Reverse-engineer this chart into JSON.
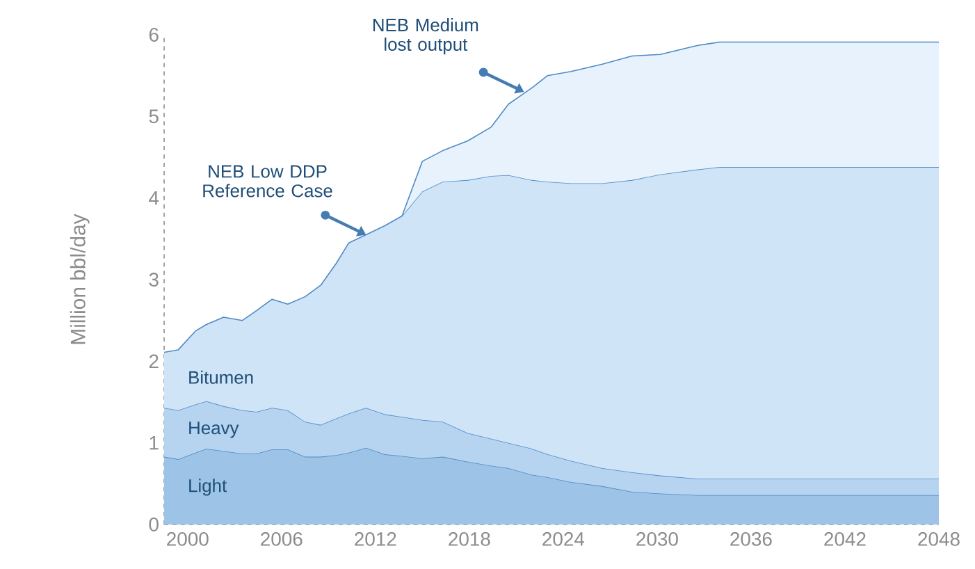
{
  "chart_data": {
    "type": "area",
    "stacked": true,
    "ylabel": "Million bbl/day",
    "x": [
      1998.5,
      1999.4,
      2000.5,
      2001.2,
      2002.3,
      2003.5,
      2004.4,
      2005.4,
      2006.4,
      2007.5,
      2008.5,
      2009.5,
      2010.3,
      2011.4,
      2012.6,
      2013.7,
      2015,
      2016.3,
      2017.9,
      2019.4,
      2020.5,
      2022,
      2023,
      2024.5,
      2026.5,
      2028.4,
      2030.2,
      2032.6,
      2034,
      2048
    ],
    "series": [
      {
        "name": "Light",
        "color": "#9dc3e6",
        "values": [
          0.83,
          0.8,
          0.88,
          0.93,
          0.9,
          0.87,
          0.87,
          0.92,
          0.92,
          0.83,
          0.83,
          0.85,
          0.88,
          0.94,
          0.86,
          0.84,
          0.81,
          0.83,
          0.77,
          0.72,
          0.69,
          0.61,
          0.58,
          0.52,
          0.47,
          0.4,
          0.38,
          0.36,
          0.36,
          0.36
        ]
      },
      {
        "name": "Heavy",
        "color": "#b6d4f0",
        "values": [
          0.6,
          0.6,
          0.59,
          0.58,
          0.55,
          0.53,
          0.51,
          0.51,
          0.48,
          0.43,
          0.39,
          0.45,
          0.48,
          0.49,
          0.49,
          0.48,
          0.47,
          0.43,
          0.35,
          0.33,
          0.31,
          0.32,
          0.28,
          0.26,
          0.22,
          0.24,
          0.22,
          0.2,
          0.2,
          0.2
        ]
      },
      {
        "name": "Bitumen",
        "color": "#d0e4f7",
        "values": [
          0.68,
          0.74,
          0.9,
          0.94,
          1.09,
          1.1,
          1.24,
          1.33,
          1.3,
          1.53,
          1.71,
          1.9,
          2.09,
          2.12,
          2.31,
          2.46,
          2.8,
          2.94,
          3.1,
          3.22,
          3.28,
          3.29,
          3.34,
          3.4,
          3.49,
          3.58,
          3.69,
          3.79,
          3.82,
          3.82
        ]
      },
      {
        "color": "#e7f2fc",
        "values": [
          null,
          null,
          null,
          null,
          null,
          null,
          null,
          null,
          null,
          null,
          null,
          null,
          null,
          null,
          null,
          0,
          0.37,
          0.38,
          0.48,
          0.6,
          0.87,
          1.13,
          1.3,
          1.37,
          1.46,
          1.52,
          1.47,
          1.52,
          1.53,
          1.53
        ]
      }
    ],
    "xlim": [
      1998.5,
      2048
    ],
    "ylim": [
      0,
      6
    ],
    "xticks": [
      2000,
      2006,
      2012,
      2018,
      2024,
      2030,
      2036,
      2042,
      2048
    ],
    "yticks": [
      0,
      1,
      2,
      3,
      4,
      5,
      6
    ],
    "annotations": [
      {
        "text": "NEB Low DDP Reference Case",
        "x": 2011.4,
        "y": 3.55
      },
      {
        "text": "NEB Medium lost output",
        "x": 2021.5,
        "y": 5.3
      }
    ]
  }
}
